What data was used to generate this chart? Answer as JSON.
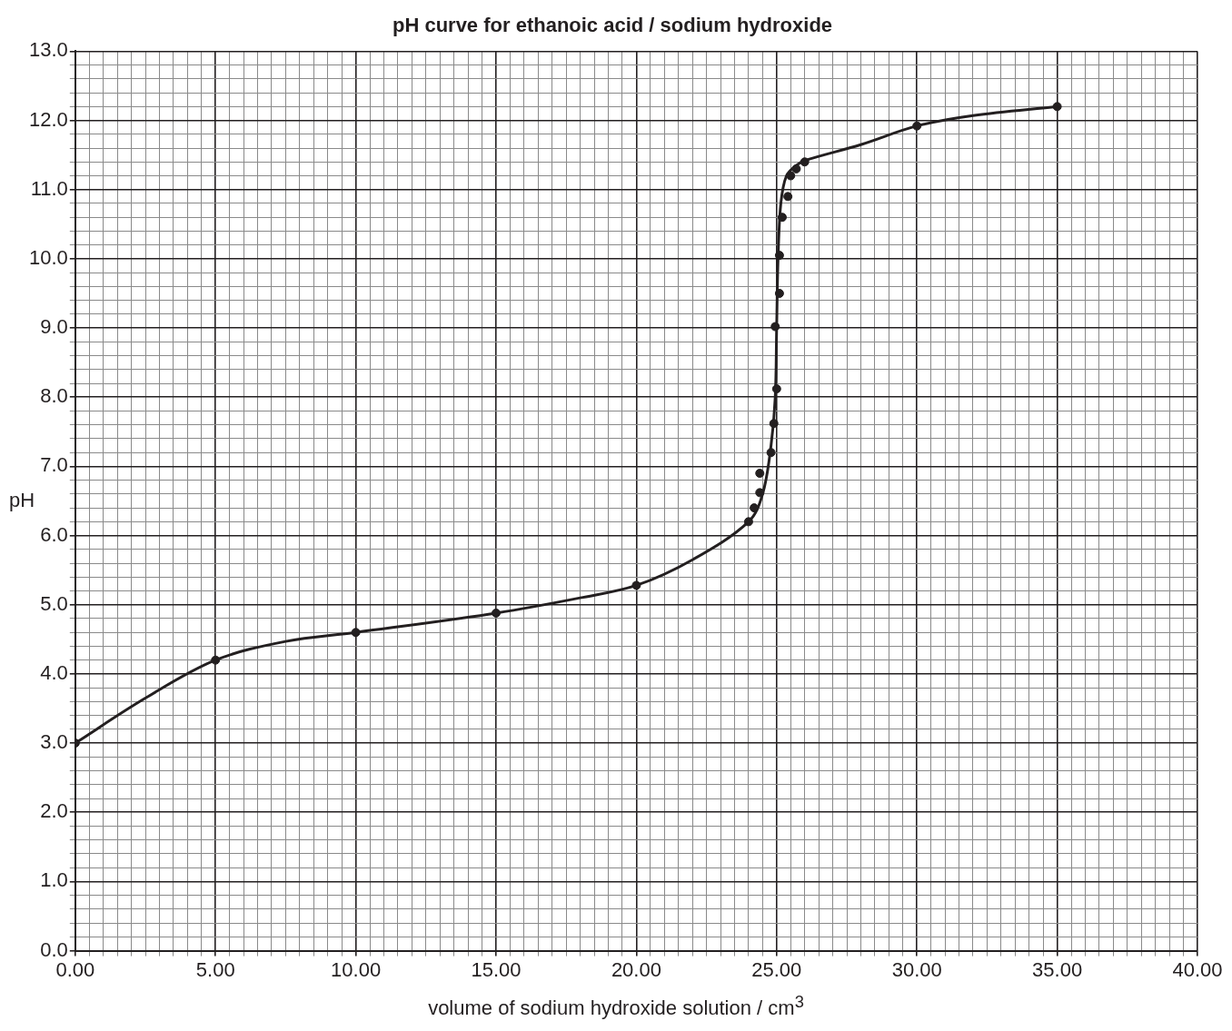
{
  "chart_data": {
    "type": "scatter",
    "title": "pH curve for ethanoic acid / sodium hydroxide",
    "xlabel": "volume of sodium hydroxide solution / cm$^{3}$",
    "ylabel": "pH",
    "xlim": [
      0,
      40
    ],
    "ylim": [
      0,
      13
    ],
    "xticks": [
      {
        "value": 0,
        "label": "0.00"
      },
      {
        "value": 0.5,
        "label": null
      },
      {
        "value": 1,
        "label": null
      },
      {
        "value": 1.5,
        "label": null
      },
      {
        "value": 2,
        "label": null
      },
      {
        "value": 2.5,
        "label": null
      },
      {
        "value": 3,
        "label": null
      },
      {
        "value": 3.5,
        "label": null
      },
      {
        "value": 4,
        "label": null
      },
      {
        "value": 4.5,
        "label": null
      },
      {
        "value": 5,
        "label": "5.00"
      },
      {
        "value": 5.5,
        "label": null
      },
      {
        "value": 6,
        "label": null
      },
      {
        "value": 6.5,
        "label": null
      },
      {
        "value": 7,
        "label": null
      },
      {
        "value": 7.5,
        "label": null
      },
      {
        "value": 8,
        "label": null
      },
      {
        "value": 8.5,
        "label": null
      },
      {
        "value": 9,
        "label": null
      },
      {
        "value": 9.5,
        "label": null
      },
      {
        "value": 10,
        "label": "10.00"
      },
      {
        "value": 10.5,
        "label": null
      },
      {
        "value": 11,
        "label": null
      },
      {
        "value": 11.5,
        "label": null
      },
      {
        "value": 12,
        "label": null
      },
      {
        "value": 12.5,
        "label": null
      },
      {
        "value": 13,
        "label": null
      },
      {
        "value": 13.5,
        "label": null
      },
      {
        "value": 14,
        "label": null
      },
      {
        "value": 14.5,
        "label": null
      },
      {
        "value": 15,
        "label": "15.00"
      },
      {
        "value": 15.5,
        "label": null
      },
      {
        "value": 16,
        "label": null
      },
      {
        "value": 16.5,
        "label": null
      },
      {
        "value": 17,
        "label": null
      },
      {
        "value": 17.5,
        "label": null
      },
      {
        "value": 18,
        "label": null
      },
      {
        "value": 18.5,
        "label": null
      },
      {
        "value": 19,
        "label": null
      },
      {
        "value": 19.5,
        "label": null
      },
      {
        "value": 20,
        "label": "20.00"
      },
      {
        "value": 20.5,
        "label": null
      },
      {
        "value": 21,
        "label": null
      },
      {
        "value": 21.5,
        "label": null
      },
      {
        "value": 22,
        "label": null
      },
      {
        "value": 22.5,
        "label": null
      },
      {
        "value": 23,
        "label": null
      },
      {
        "value": 23.5,
        "label": null
      },
      {
        "value": 24,
        "label": null
      },
      {
        "value": 24.5,
        "label": null
      },
      {
        "value": 25,
        "label": "25.00"
      },
      {
        "value": 25.5,
        "label": null
      },
      {
        "value": 26,
        "label": null
      },
      {
        "value": 26.5,
        "label": null
      },
      {
        "value": 27,
        "label": null
      },
      {
        "value": 27.5,
        "label": null
      },
      {
        "value": 28,
        "label": null
      },
      {
        "value": 28.5,
        "label": null
      },
      {
        "value": 29,
        "label": null
      },
      {
        "value": 29.5,
        "label": null
      },
      {
        "value": 30,
        "label": "30.00"
      },
      {
        "value": 30.5,
        "label": null
      },
      {
        "value": 31,
        "label": null
      },
      {
        "value": 31.5,
        "label": null
      },
      {
        "value": 32,
        "label": null
      },
      {
        "value": 32.5,
        "label": null
      },
      {
        "value": 33,
        "label": null
      },
      {
        "value": 33.5,
        "label": null
      },
      {
        "value": 34,
        "label": null
      },
      {
        "value": 34.5,
        "label": null
      },
      {
        "value": 35,
        "label": "35.00"
      },
      {
        "value": 35.5,
        "label": null
      },
      {
        "value": 36,
        "label": null
      },
      {
        "value": 36.5,
        "label": null
      },
      {
        "value": 37,
        "label": null
      },
      {
        "value": 37.5,
        "label": null
      },
      {
        "value": 38,
        "label": null
      },
      {
        "value": 38.5,
        "label": null
      },
      {
        "value": 39,
        "label": null
      },
      {
        "value": 39.5,
        "label": null
      },
      {
        "value": 40,
        "label": "40.00"
      }
    ],
    "yticks": [
      {
        "value": 0,
        "label": "0.0"
      },
      {
        "value": 0.2,
        "label": null
      },
      {
        "value": 0.4,
        "label": null
      },
      {
        "value": 0.6,
        "label": null
      },
      {
        "value": 0.8,
        "label": null
      },
      {
        "value": 1,
        "label": "1.0"
      },
      {
        "value": 1.2,
        "label": null
      },
      {
        "value": 1.4,
        "label": null
      },
      {
        "value": 1.6,
        "label": null
      },
      {
        "value": 1.8,
        "label": null
      },
      {
        "value": 2,
        "label": "2.0"
      },
      {
        "value": 2.2,
        "label": null
      },
      {
        "value": 2.4,
        "label": null
      },
      {
        "value": 2.6,
        "label": null
      },
      {
        "value": 2.8,
        "label": null
      },
      {
        "value": 3,
        "label": "3.0"
      },
      {
        "value": 3.2,
        "label": null
      },
      {
        "value": 3.4,
        "label": null
      },
      {
        "value": 3.6,
        "label": null
      },
      {
        "value": 3.8,
        "label": null
      },
      {
        "value": 4,
        "label": "4.0"
      },
      {
        "value": 4.2,
        "label": null
      },
      {
        "value": 4.4,
        "label": null
      },
      {
        "value": 4.6,
        "label": null
      },
      {
        "value": 4.8,
        "label": null
      },
      {
        "value": 5,
        "label": "5.0"
      },
      {
        "value": 5.2,
        "label": null
      },
      {
        "value": 5.4,
        "label": null
      },
      {
        "value": 5.6,
        "label": null
      },
      {
        "value": 5.8,
        "label": null
      },
      {
        "value": 6,
        "label": "6.0"
      },
      {
        "value": 6.2,
        "label": null
      },
      {
        "value": 6.4,
        "label": null
      },
      {
        "value": 6.6,
        "label": null
      },
      {
        "value": 6.8,
        "label": null
      },
      {
        "value": 7,
        "label": "7.0"
      },
      {
        "value": 7.2,
        "label": null
      },
      {
        "value": 7.4,
        "label": null
      },
      {
        "value": 7.6,
        "label": null
      },
      {
        "value": 7.8,
        "label": null
      },
      {
        "value": 8,
        "label": "8.0"
      },
      {
        "value": 8.2,
        "label": null
      },
      {
        "value": 8.4,
        "label": null
      },
      {
        "value": 8.6,
        "label": null
      },
      {
        "value": 8.8,
        "label": null
      },
      {
        "value": 9,
        "label": "9.0"
      },
      {
        "value": 9.2,
        "label": null
      },
      {
        "value": 9.4,
        "label": null
      },
      {
        "value": 9.6,
        "label": null
      },
      {
        "value": 9.8,
        "label": null
      },
      {
        "value": 10,
        "label": "10.0"
      },
      {
        "value": 10.2,
        "label": null
      },
      {
        "value": 10.4,
        "label": null
      },
      {
        "value": 10.6,
        "label": null
      },
      {
        "value": 10.8,
        "label": null
      },
      {
        "value": 11,
        "label": "11.0"
      },
      {
        "value": 11.2,
        "label": null
      },
      {
        "value": 11.4,
        "label": null
      },
      {
        "value": 11.6,
        "label": null
      },
      {
        "value": 11.8,
        "label": null
      },
      {
        "value": 12,
        "label": "12.0"
      },
      {
        "value": 12.2,
        "label": null
      },
      {
        "value": 12.4,
        "label": null
      },
      {
        "value": 12.6,
        "label": null
      },
      {
        "value": 12.8,
        "label": null
      },
      {
        "value": 13,
        "label": "13.0"
      }
    ],
    "grid": true,
    "legend": false,
    "series": [
      {
        "type": "scatter",
        "marker": "circle",
        "color": "#231f20",
        "x": [
          0,
          5,
          10,
          15,
          20,
          24,
          24.2,
          24.4,
          24.4,
          24.8,
          24.9,
          25,
          24.95,
          25.1,
          25.1,
          25.2,
          25.4,
          25.5,
          25.7,
          26,
          30,
          35
        ],
        "values": [
          3.0,
          4.2,
          4.6,
          4.88,
          5.28,
          6.2,
          6.4,
          6.62,
          6.9,
          7.2,
          7.62,
          8.12,
          9.02,
          9.5,
          10.05,
          10.6,
          10.9,
          11.2,
          11.3,
          11.4,
          11.92,
          12.2
        ]
      },
      {
        "type": "line",
        "marker": "none",
        "line_style": "solid",
        "color": "#231f20",
        "x": [
          0,
          2.5,
          5,
          7.5,
          10,
          15,
          18,
          20,
          22,
          24,
          24.5,
          24.8,
          24.95,
          25,
          25.05,
          25.15,
          25.35,
          25.7,
          26,
          28,
          30,
          32,
          35
        ],
        "values": [
          3.0,
          3.65,
          4.2,
          4.47,
          4.6,
          4.88,
          5.1,
          5.28,
          5.65,
          6.2,
          6.6,
          7.3,
          8.0,
          9.0,
          10.0,
          10.8,
          11.2,
          11.35,
          11.42,
          11.65,
          11.92,
          12.07,
          12.2
        ]
      }
    ]
  }
}
